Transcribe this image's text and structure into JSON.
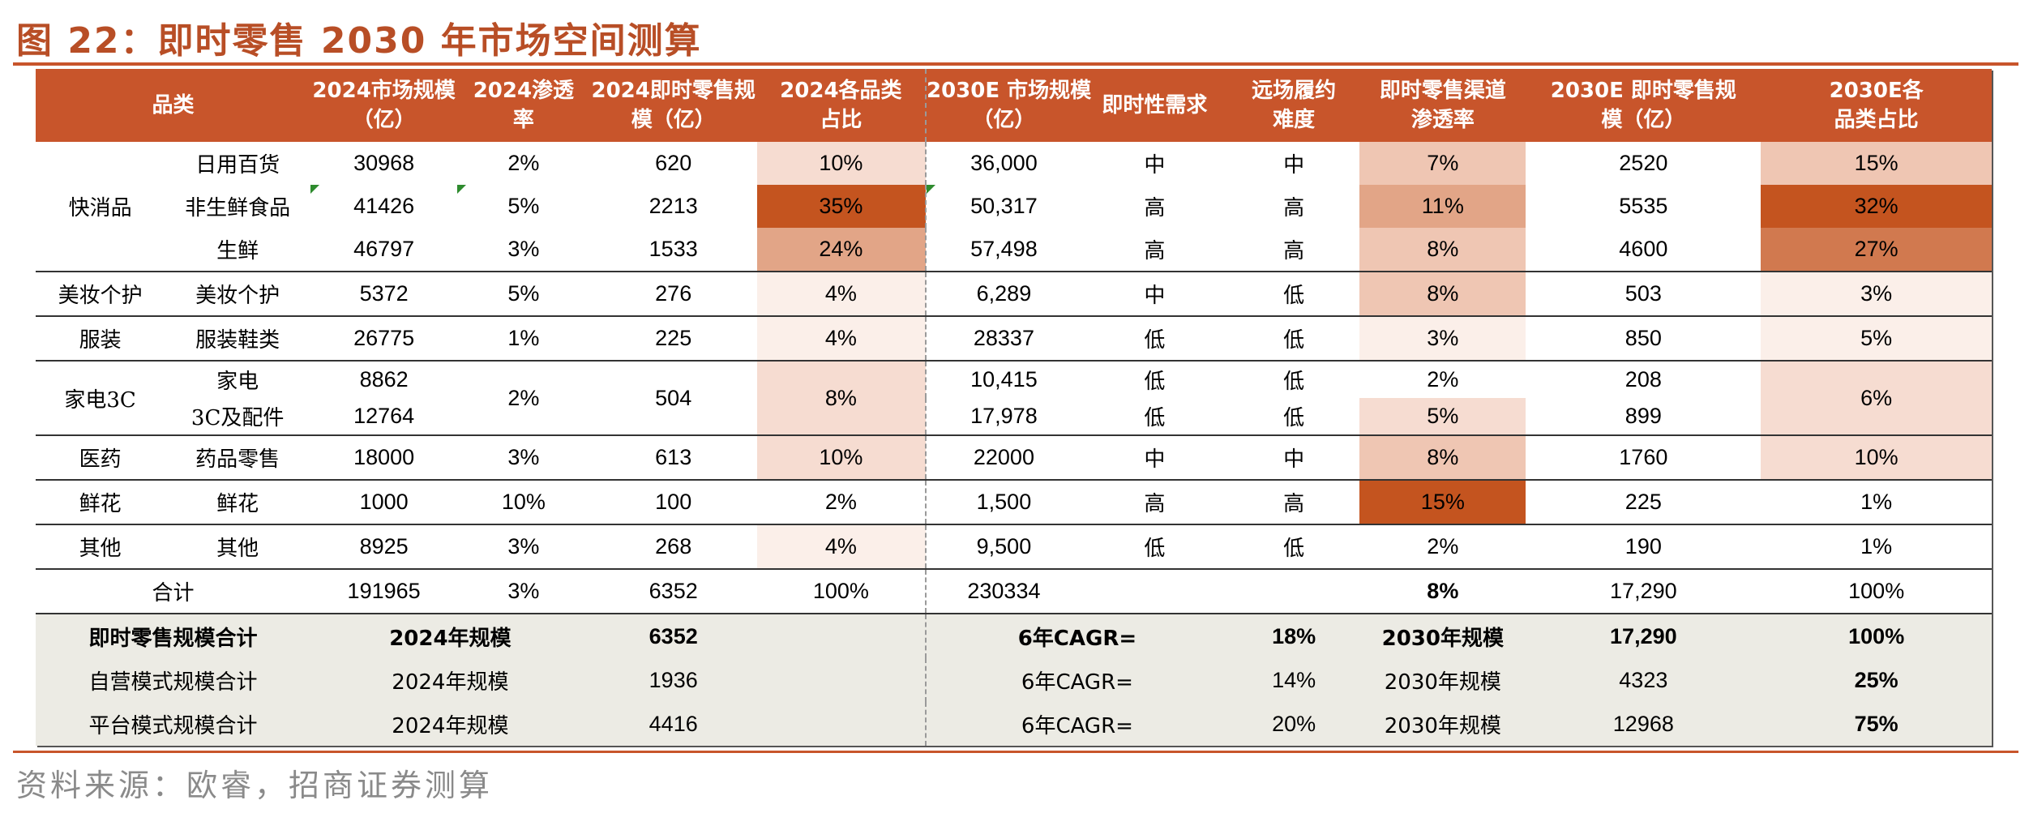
{
  "title": "图 22：即时零售 2030 年市场空间测算",
  "source": "资料来源：欧睿，招商证券测算",
  "header": {
    "category": "品类",
    "market_2024": "2024市场规模\n（亿）",
    "pen_2024": "2024渗透\n率",
    "instant_2024": "2024即时零售规\n模（亿）",
    "share_2024": "2024各品类\n占比",
    "market_2030": "2030E 市场规模\n（亿）",
    "urgency": "即时性需求",
    "difficulty": "远场履约\n难度",
    "pen_2030": "即时零售渠道\n渗透率",
    "instant_2030": "2030E 即时零售规\n模（亿）",
    "share_2030": "2030E各\n品类占比"
  },
  "groups": {
    "fmcg": "快消品",
    "beauty": "美妆个护",
    "apparel": "服装",
    "appliance": "家电3C",
    "pharma": "医药",
    "flowers": "鲜花",
    "other": "其他"
  },
  "rows": {
    "daily": {
      "sub": "日用百货",
      "m24": "30968",
      "p24": "2%",
      "i24": "620",
      "s24": "10%",
      "m30": "36,000",
      "urg": "中",
      "diff": "中",
      "p30": "7%",
      "i30": "2520",
      "s30": "15%"
    },
    "nonfresh": {
      "sub": "非生鲜食品",
      "m24": "41426",
      "p24": "5%",
      "i24": "2213",
      "s24": "35%",
      "m30": "50,317",
      "urg": "高",
      "diff": "高",
      "p30": "11%",
      "i30": "5535",
      "s30": "32%"
    },
    "fresh": {
      "sub": "生鲜",
      "m24": "46797",
      "p24": "3%",
      "i24": "1533",
      "s24": "24%",
      "m30": "57,498",
      "urg": "高",
      "diff": "高",
      "p30": "8%",
      "i30": "4600",
      "s30": "27%"
    },
    "beauty": {
      "sub": "美妆个护",
      "m24": "5372",
      "p24": "5%",
      "i24": "276",
      "s24": "4%",
      "m30": "6,289",
      "urg": "中",
      "diff": "低",
      "p30": "8%",
      "i30": "503",
      "s30": "3%"
    },
    "apparel": {
      "sub": "服装鞋类",
      "m24": "26775",
      "p24": "1%",
      "i24": "225",
      "s24": "4%",
      "m30": "28337",
      "urg": "低",
      "diff": "低",
      "p30": "3%",
      "i30": "850",
      "s30": "5%"
    },
    "appliance": {
      "sub": "家电",
      "m24": "8862",
      "p24": "2%",
      "i24": "504",
      "s24": "8%",
      "m30": "10,415",
      "urg": "低",
      "diff": "低",
      "p30": "2%",
      "i30": "208",
      "s30": "6%"
    },
    "c3": {
      "sub": "3C及配件",
      "m24": "12764",
      "m30": "17,978",
      "urg": "低",
      "diff": "低",
      "p30": "5%",
      "i30": "899"
    },
    "pharma": {
      "sub": "药品零售",
      "m24": "18000",
      "p24": "3%",
      "i24": "613",
      "s24": "10%",
      "m30": "22000",
      "urg": "中",
      "diff": "中",
      "p30": "8%",
      "i30": "1760",
      "s30": "10%"
    },
    "flowers": {
      "sub": "鲜花",
      "m24": "1000",
      "p24": "10%",
      "i24": "100",
      "s24": "2%",
      "m30": "1,500",
      "urg": "高",
      "diff": "高",
      "p30": "15%",
      "i30": "225",
      "s30": "1%"
    },
    "other": {
      "sub": "其他",
      "m24": "8925",
      "p24": "3%",
      "i24": "268",
      "s24": "4%",
      "m30": "9,500",
      "urg": "低",
      "diff": "低",
      "p30": "2%",
      "i30": "190",
      "s30": "1%"
    }
  },
  "total": {
    "label": "合计",
    "m24": "191965",
    "p24": "3%",
    "i24": "6352",
    "s24": "100%",
    "m30": "230334",
    "p30": "8%",
    "i30": "17,290",
    "s30": "100%"
  },
  "summary": [
    {
      "label": "即时零售规模合计",
      "y24": "2024年规模",
      "v24": "6352",
      "cagr": "6年CAGR=",
      "cagr_v": "18%",
      "y30": "2030年规模",
      "v30": "17,290",
      "share": "100%"
    },
    {
      "label": "自营模式规模合计",
      "y24": "2024年规模",
      "v24": "1936",
      "cagr": "6年CAGR=",
      "cagr_v": "14%",
      "y30": "2030年规模",
      "v30": "4323",
      "share": "25%"
    },
    {
      "label": "平台模式规模合计",
      "y24": "2024年规模",
      "v24": "4416",
      "cagr": "6年CAGR=",
      "cagr_v": "20%",
      "y30": "2030年规模",
      "v30": "12968",
      "share": "75%"
    }
  ],
  "heat_colors": {
    "none": "#ffffff",
    "c1": "#fbefe9",
    "c2": "#f6dcd1",
    "c3": "#efc6b3",
    "c4": "#e2a587",
    "c5": "#d1794f",
    "c6": "#c4541f"
  }
}
